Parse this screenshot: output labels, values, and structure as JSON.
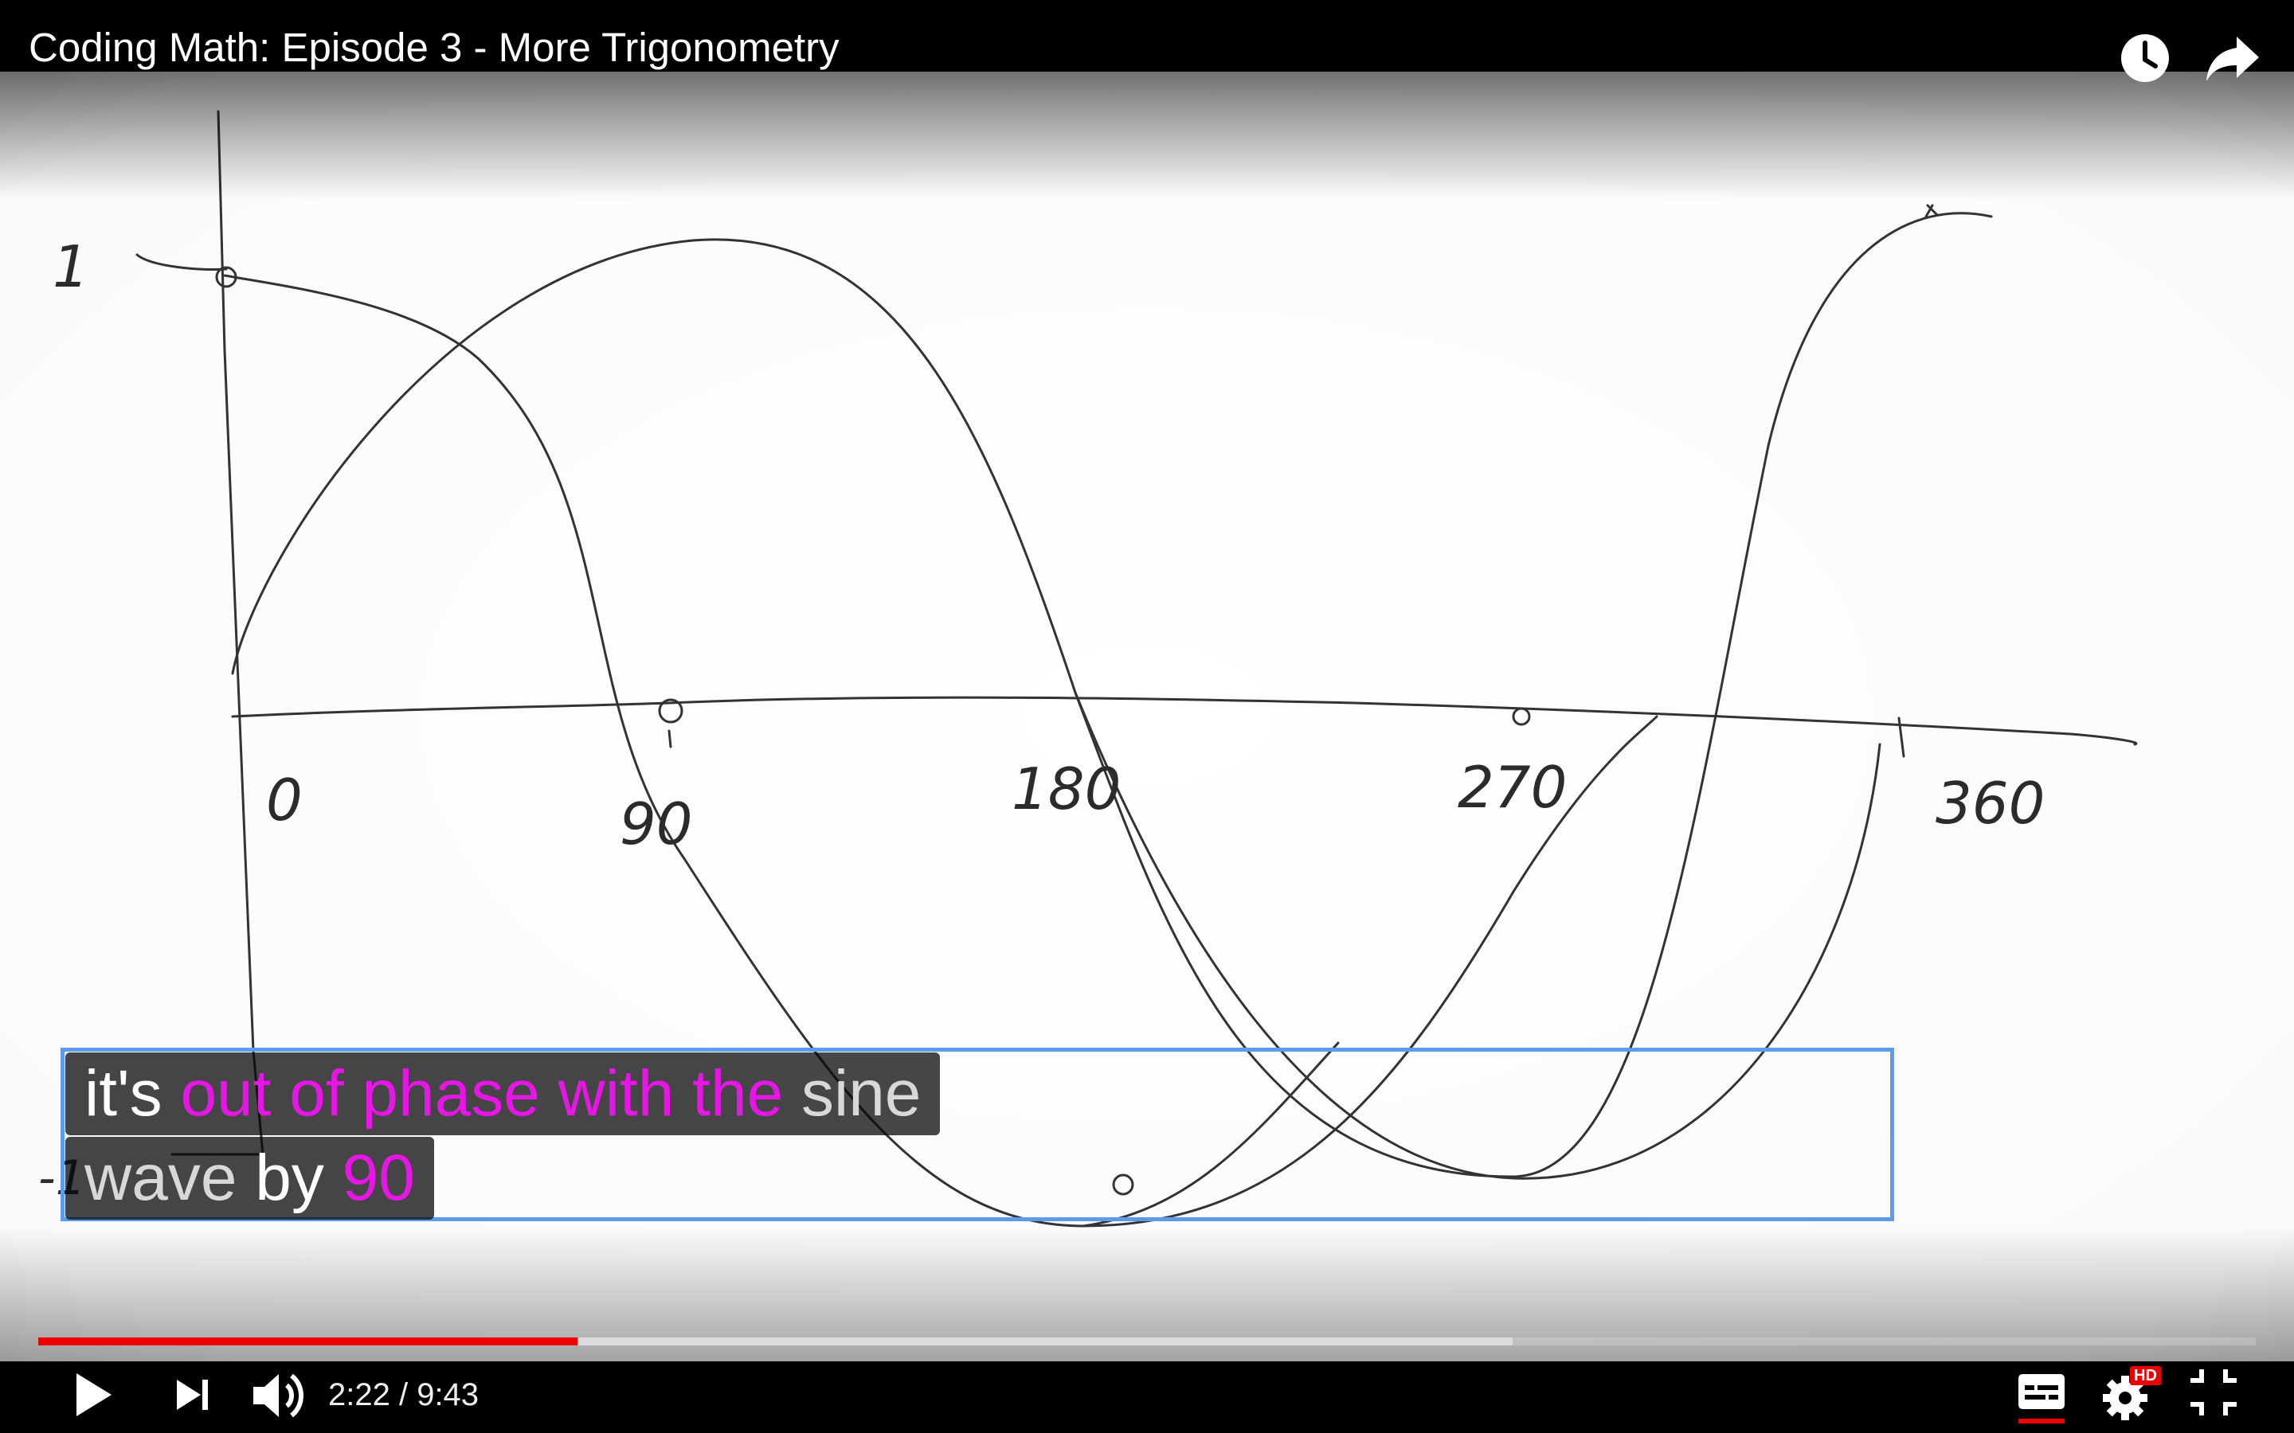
{
  "player": {
    "title": "Coding Math: Episode 3 - More Trigonometry",
    "time": {
      "current": "2:22",
      "duration": "9:43",
      "display": "2:22 / 9:43"
    },
    "progress": {
      "played_fraction": 0.243,
      "buffered_fraction": 0.665
    },
    "settings_badge": "HD",
    "colors": {
      "progress_played": "#ee0000",
      "caption_highlight": "#e617e6",
      "caption_window_border": "#5b9cf1"
    },
    "icons": {
      "top_bar": [
        "watch-later-icon",
        "share-icon"
      ],
      "controls": [
        "play-icon",
        "next-icon",
        "volume-icon",
        "subtitles-icon",
        "settings-icon",
        "exit-fullscreen-icon"
      ]
    }
  },
  "captions": {
    "line1": {
      "part1": "it's ",
      "part2": "out of phase with the",
      "part3": " sine"
    },
    "line2": {
      "part1": "wave",
      "part2": " by ",
      "part3": "90"
    }
  },
  "whiteboard": {
    "x_axis_labels": [
      "0",
      "90",
      "180",
      "270",
      "360"
    ],
    "y_axis_top_label": "1",
    "y_axis_bottom_label": "-1"
  }
}
